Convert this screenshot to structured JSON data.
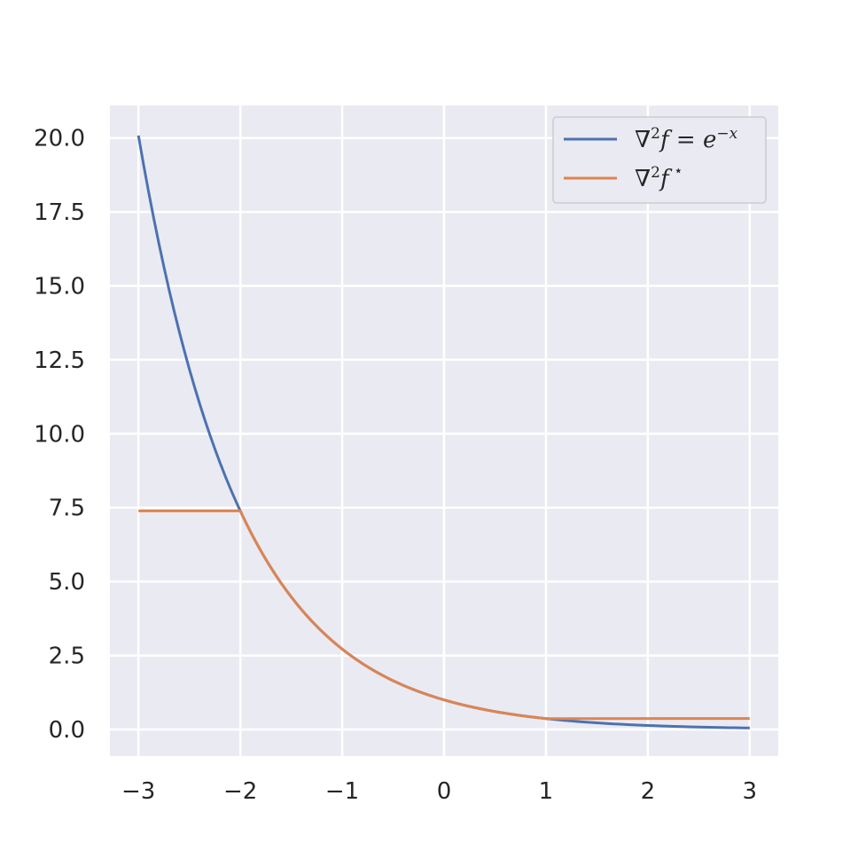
{
  "chart_data": {
    "type": "line",
    "title": "",
    "xlabel": "",
    "ylabel": "",
    "xlim": [
      -3.28,
      3.28
    ],
    "ylim": [
      -0.9,
      21.1
    ],
    "x_ticks": [
      -3,
      -2,
      -1,
      0,
      1,
      2,
      3
    ],
    "x_tick_labels": [
      "−3",
      "−2",
      "−1",
      "0",
      "1",
      "2",
      "3"
    ],
    "y_ticks": [
      0,
      2.5,
      5,
      7.5,
      10,
      12.5,
      15,
      17.5,
      20
    ],
    "y_tick_labels": [
      "0.0",
      "2.5",
      "5.0",
      "7.5",
      "10.0",
      "12.5",
      "15.0",
      "17.5",
      "20.0"
    ],
    "grid": true,
    "legend_position": "upper right",
    "series": [
      {
        "name": "∇²f = e^{−x}",
        "color": "#4c72b0",
        "x": [
          -3.0,
          -2.75,
          -2.5,
          -2.25,
          -2.0,
          -1.75,
          -1.5,
          -1.25,
          -1.0,
          -0.75,
          -0.5,
          -0.25,
          0.0,
          0.25,
          0.5,
          0.75,
          1.0,
          1.25,
          1.5,
          1.75,
          2.0,
          2.25,
          2.5,
          2.75,
          3.0
        ],
        "y": [
          20.09,
          15.64,
          12.18,
          9.49,
          7.39,
          5.75,
          4.48,
          3.49,
          2.72,
          2.12,
          1.65,
          1.28,
          1.0,
          0.78,
          0.61,
          0.47,
          0.37,
          0.29,
          0.22,
          0.17,
          0.14,
          0.11,
          0.08,
          0.06,
          0.05
        ]
      },
      {
        "name": "∇²f*",
        "color": "#dd8452",
        "x": [
          -3.0,
          -2.0,
          -1.75,
          -1.5,
          -1.25,
          -1.0,
          -0.75,
          -0.5,
          -0.25,
          0.0,
          0.25,
          0.5,
          0.75,
          1.0,
          3.0
        ],
        "y": [
          7.39,
          7.39,
          5.75,
          4.48,
          3.49,
          2.72,
          2.12,
          1.65,
          1.28,
          1.0,
          0.78,
          0.61,
          0.47,
          0.37,
          0.37
        ]
      }
    ]
  }
}
